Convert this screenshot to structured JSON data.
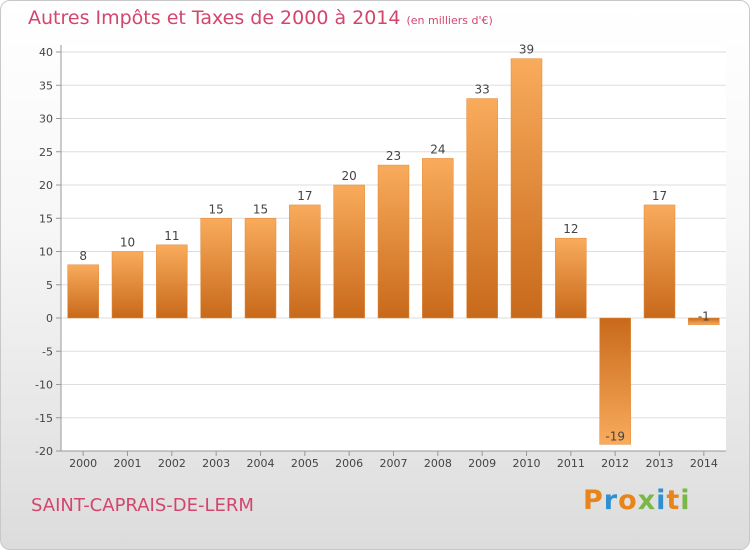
{
  "title": "Autres Impôts et Taxes de 2000 à 2014",
  "subtitle": "(en milliers d'€)",
  "commune": "SAINT-CAPRAIS-DE-LERM",
  "logo": {
    "letters": [
      "P",
      "r",
      "o",
      "x",
      "i",
      "t",
      "i"
    ],
    "colors": [
      "#e8841c",
      "#2e8fd1",
      "#e8841c",
      "#7ab648",
      "#2e8fd1",
      "#e8841c",
      "#7ab648"
    ]
  },
  "colors": {
    "title": "#d4456e",
    "bar_light": "#f7a85a",
    "bar_dark": "#c8691a",
    "grid": "#dddddd",
    "axis": "#bbbbbb"
  },
  "chart_data": {
    "type": "bar",
    "title": "Autres Impôts et Taxes de 2000 à 2014",
    "categories": [
      "2000",
      "2001",
      "2002",
      "2003",
      "2004",
      "2005",
      "2006",
      "2007",
      "2008",
      "2009",
      "2010",
      "2011",
      "2012",
      "2013",
      "2014"
    ],
    "values": [
      8,
      10,
      11,
      15,
      15,
      17,
      20,
      23,
      24,
      33,
      39,
      12,
      -19,
      17,
      -1
    ],
    "value_labels": [
      "8",
      "10",
      "11",
      "15",
      "15",
      "17",
      "20",
      "23",
      "24",
      "33",
      "39",
      "12",
      "-19",
      "17",
      "-1"
    ],
    "ylim": [
      -20,
      40
    ],
    "yticks": [
      "40",
      "35",
      "30",
      "25",
      "20",
      "15",
      "10",
      "5",
      "0",
      "-5",
      "-10",
      "-15",
      "-20"
    ],
    "grid": true,
    "legend": "none"
  }
}
